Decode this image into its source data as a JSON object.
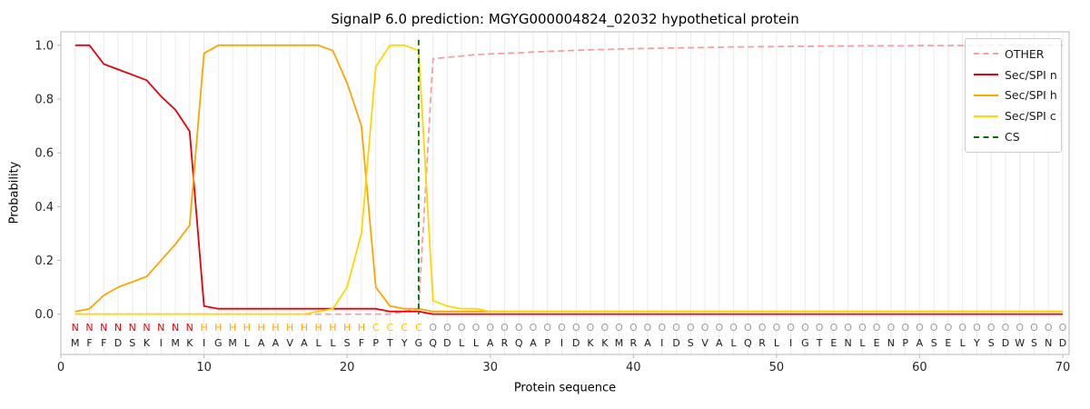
{
  "chart_data": {
    "type": "line",
    "title": "SignalP 6.0 prediction: MGYG000004824_02032 hypothetical protein",
    "xlabel": "Protein sequence",
    "ylabel": "Probability",
    "xlim": [
      0,
      70.45
    ],
    "ylim": [
      -0.15,
      1.05
    ],
    "grid": "vertical-per-residue",
    "legend_position": "upper right",
    "x_ticks": [
      0,
      10,
      20,
      30,
      40,
      50,
      60,
      70
    ],
    "y_ticks": [
      0.0,
      0.2,
      0.4,
      0.6,
      0.8,
      1.0
    ],
    "y_tick_labels": [
      "0.0",
      "0.2",
      "0.4",
      "0.6",
      "0.8",
      "1.0"
    ],
    "cs_position": 25,
    "cs": {
      "name": "CS",
      "color": "#0b6b0b",
      "dash": true
    },
    "sequence": "MFFDSKIMKIGMLAAVALLSFPTYGQDLLARQAPIDKKMRAIDSVALQRLIGTENLENPASELYSDWSND",
    "region_labels": "NNNNNNNNNHHHHHHHHHHHHCCCCOOOOOOOOOOOOOOOOOOOOOOOOOOOOOOOOOOOOOOOOOOOOO",
    "label_colors": {
      "N": "#e8000b",
      "H": "#ffa500",
      "C": "#f5c800",
      "O": "#9c9c9c"
    },
    "colors": {
      "grid": "#ebebeb",
      "frame": "#b8b8b8"
    },
    "series": [
      {
        "name": "OTHER",
        "color": "#f3a0a0",
        "dash": true,
        "values": [
          0,
          0,
          0,
          0,
          0,
          0,
          0,
          0,
          0,
          0,
          0,
          0,
          0,
          0,
          0,
          0,
          0,
          0,
          0,
          0,
          0,
          0,
          0,
          0.01,
          0.02,
          0.95,
          0.955,
          0.96,
          0.965,
          0.968,
          0.97,
          0.972,
          0.975,
          0.977,
          0.979,
          0.981,
          0.983,
          0.984,
          0.986,
          0.987,
          0.988,
          0.989,
          0.99,
          0.991,
          0.992,
          0.993,
          0.994,
          0.994,
          0.995,
          0.995,
          0.996,
          0.996,
          0.997,
          0.997,
          0.997,
          0.998,
          0.998,
          0.998,
          0.998,
          0.999,
          0.999,
          0.999,
          0.999,
          0.999,
          1,
          1,
          1,
          1,
          1,
          1
        ]
      },
      {
        "name": "Sec/SPI n",
        "color": "#e8000b",
        "dash": false,
        "values": [
          1,
          1,
          0.93,
          0.91,
          0.89,
          0.87,
          0.81,
          0.76,
          0.68,
          0.03,
          0.02,
          0.02,
          0.02,
          0.02,
          0.02,
          0.02,
          0.02,
          0.02,
          0.02,
          0.02,
          0.02,
          0.02,
          0.01,
          0.01,
          0.01,
          0,
          0,
          0,
          0,
          0,
          0,
          0,
          0,
          0,
          0,
          0,
          0,
          0,
          0,
          0,
          0,
          0,
          0,
          0,
          0,
          0,
          0,
          0,
          0,
          0,
          0,
          0,
          0,
          0,
          0,
          0,
          0,
          0,
          0,
          0,
          0,
          0,
          0,
          0,
          0,
          0,
          0,
          0,
          0,
          0
        ]
      },
      {
        "name": "Sec/SPI h",
        "color": "#ffa500",
        "dash": false,
        "values": [
          0.01,
          0.02,
          0.07,
          0.1,
          0.12,
          0.14,
          0.2,
          0.26,
          0.33,
          0.97,
          1,
          1,
          1,
          1,
          1,
          1,
          1,
          1,
          0.98,
          0.86,
          0.7,
          0.1,
          0.03,
          0.02,
          0.02,
          0.01,
          0.01,
          0.01,
          0.01,
          0.01,
          0.01,
          0.01,
          0.01,
          0.01,
          0.01,
          0.01,
          0.01,
          0.01,
          0.01,
          0.01,
          0.01,
          0.01,
          0.01,
          0.01,
          0.01,
          0.01,
          0.01,
          0.01,
          0.01,
          0.01,
          0.01,
          0.01,
          0.01,
          0.01,
          0.01,
          0.01,
          0.01,
          0.01,
          0.01,
          0.01,
          0.01,
          0.01,
          0.01,
          0.01,
          0.01,
          0.01,
          0.01,
          0.01,
          0.01,
          0.01
        ]
      },
      {
        "name": "Sec/SPI c",
        "color": "#ffd700",
        "dash": false,
        "values": [
          0,
          0,
          0,
          0,
          0,
          0,
          0,
          0,
          0,
          0,
          0,
          0,
          0,
          0,
          0,
          0,
          0,
          0.01,
          0.02,
          0.1,
          0.3,
          0.92,
          1,
          1,
          0.98,
          0.05,
          0.03,
          0.02,
          0.02,
          0.01,
          0.01,
          0.01,
          0.01,
          0.01,
          0.01,
          0.01,
          0.01,
          0.01,
          0.01,
          0.01,
          0.01,
          0.01,
          0.01,
          0.01,
          0.01,
          0.01,
          0.01,
          0.01,
          0.01,
          0.01,
          0.01,
          0.01,
          0.01,
          0.01,
          0.01,
          0.01,
          0.01,
          0.01,
          0.01,
          0.01,
          0.01,
          0.01,
          0.01,
          0.01,
          0.01,
          0.01,
          0.01,
          0.01,
          0.01,
          0.01
        ]
      }
    ]
  }
}
